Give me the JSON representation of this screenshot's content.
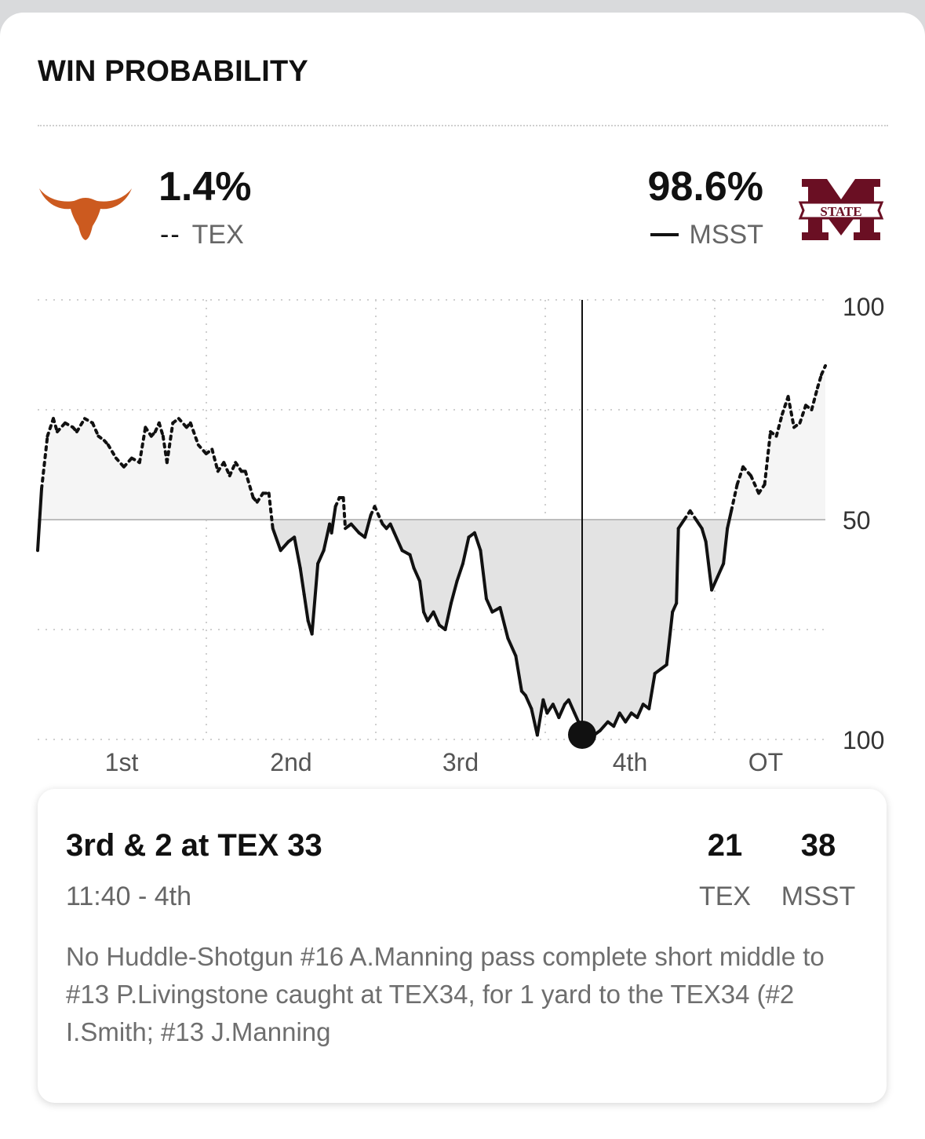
{
  "header": {
    "title": "WIN PROBABILITY"
  },
  "teams": {
    "away": {
      "pct": "1.4%",
      "key": "--",
      "abbr": "TEX",
      "logo": "longhorn-logo",
      "color": "#cc5a1f"
    },
    "home": {
      "pct": "98.6%",
      "abbr": "MSST",
      "logo": "msst-state-logo",
      "color": "#6a0f23",
      "logo_text": "STATE"
    }
  },
  "chart_data": {
    "type": "line",
    "y_tick_labels": [
      "100",
      "50",
      "100"
    ],
    "ylim": [
      0,
      100
    ],
    "x_period_labels": [
      "1st",
      "2nd",
      "3rd",
      "4th",
      "OT"
    ],
    "series": [
      {
        "name": "TEX",
        "style": "dotted"
      },
      {
        "name": "MSST",
        "style": "solid"
      }
    ],
    "current_marker_period": "4th",
    "msst_wp_points": [
      [
        0,
        57
      ],
      [
        0.1,
        43
      ],
      [
        0.25,
        31
      ],
      [
        0.4,
        27
      ],
      [
        0.5,
        30
      ],
      [
        0.7,
        28
      ],
      [
        0.9,
        29
      ],
      [
        1.0,
        30
      ],
      [
        1.2,
        27
      ],
      [
        1.4,
        28
      ],
      [
        1.55,
        31
      ],
      [
        1.7,
        32
      ],
      [
        1.8,
        33
      ],
      [
        2.0,
        36
      ],
      [
        2.2,
        38
      ],
      [
        2.4,
        36
      ],
      [
        2.6,
        37
      ],
      [
        2.75,
        29
      ],
      [
        2.9,
        31
      ],
      [
        3.0,
        30
      ],
      [
        3.1,
        28
      ],
      [
        3.2,
        31
      ],
      [
        3.3,
        37
      ],
      [
        3.45,
        28
      ],
      [
        3.6,
        27
      ],
      [
        3.8,
        29
      ],
      [
        3.9,
        28
      ],
      [
        4.1,
        33
      ],
      [
        4.3,
        35
      ],
      [
        4.45,
        34
      ],
      [
        4.6,
        39
      ],
      [
        4.75,
        37
      ],
      [
        4.9,
        40
      ],
      [
        5.05,
        37
      ],
      [
        5.2,
        39
      ],
      [
        5.3,
        39
      ],
      [
        5.5,
        45
      ],
      [
        5.6,
        46
      ],
      [
        5.75,
        44
      ],
      [
        5.9,
        44
      ],
      [
        6.0,
        52
      ],
      [
        6.2,
        57
      ],
      [
        6.4,
        55
      ],
      [
        6.55,
        54
      ],
      [
        6.7,
        61
      ],
      [
        6.8,
        67
      ],
      [
        6.9,
        73
      ],
      [
        7.0,
        76
      ],
      [
        7.15,
        60
      ],
      [
        7.3,
        57
      ],
      [
        7.45,
        51
      ],
      [
        7.5,
        53
      ],
      [
        7.6,
        47
      ],
      [
        7.7,
        45
      ],
      [
        7.8,
        45
      ],
      [
        7.85,
        52
      ],
      [
        8.0,
        51
      ],
      [
        8.2,
        53
      ],
      [
        8.35,
        54
      ],
      [
        8.5,
        49
      ],
      [
        8.6,
        47
      ],
      [
        8.8,
        51
      ],
      [
        8.9,
        52
      ],
      [
        9.0,
        51
      ],
      [
        9.1,
        53
      ],
      [
        9.3,
        57
      ],
      [
        9.5,
        58
      ],
      [
        9.6,
        61
      ],
      [
        9.75,
        64
      ],
      [
        9.85,
        71
      ],
      [
        9.95,
        73
      ],
      [
        10.1,
        71
      ],
      [
        10.25,
        74
      ],
      [
        10.4,
        75
      ],
      [
        10.55,
        69
      ],
      [
        10.7,
        64
      ],
      [
        10.85,
        60
      ],
      [
        11.0,
        54
      ],
      [
        11.15,
        53
      ],
      [
        11.3,
        57
      ],
      [
        11.45,
        68
      ],
      [
        11.6,
        71
      ],
      [
        11.8,
        70
      ],
      [
        12.0,
        77
      ],
      [
        12.2,
        81
      ],
      [
        12.35,
        89
      ],
      [
        12.45,
        90
      ],
      [
        12.6,
        93
      ],
      [
        12.75,
        99
      ],
      [
        12.9,
        91
      ],
      [
        13.0,
        94
      ],
      [
        13.15,
        92
      ],
      [
        13.3,
        95
      ],
      [
        13.45,
        92
      ],
      [
        13.55,
        91
      ],
      [
        13.7,
        94
      ],
      [
        13.8,
        96
      ],
      [
        13.9,
        100
      ],
      [
        14.0,
        99
      ],
      [
        14.1,
        99
      ],
      [
        14.2,
        99
      ],
      [
        14.35,
        98
      ],
      [
        14.45,
        97
      ],
      [
        14.55,
        96
      ],
      [
        14.7,
        97
      ],
      [
        14.85,
        94
      ],
      [
        15.0,
        96
      ],
      [
        15.15,
        94
      ],
      [
        15.3,
        95
      ],
      [
        15.45,
        92
      ],
      [
        15.6,
        93
      ],
      [
        15.75,
        85
      ],
      [
        15.9,
        84
      ],
      [
        16.05,
        83
      ],
      [
        16.2,
        71
      ],
      [
        16.3,
        69
      ],
      [
        16.35,
        52
      ],
      [
        16.5,
        50
      ],
      [
        16.65,
        48
      ],
      [
        16.8,
        50
      ],
      [
        16.95,
        52
      ],
      [
        17.05,
        55
      ],
      [
        17.2,
        66
      ],
      [
        17.35,
        63
      ],
      [
        17.5,
        60
      ],
      [
        17.6,
        52
      ],
      [
        17.7,
        48
      ],
      [
        17.85,
        42
      ],
      [
        18.0,
        38
      ],
      [
        18.2,
        40
      ],
      [
        18.4,
        44
      ],
      [
        18.55,
        42
      ],
      [
        18.7,
        30
      ],
      [
        18.85,
        31
      ],
      [
        19.0,
        26
      ],
      [
        19.15,
        22
      ],
      [
        19.3,
        29
      ],
      [
        19.45,
        28
      ],
      [
        19.6,
        24
      ],
      [
        19.75,
        25
      ],
      [
        19.9,
        20
      ],
      [
        20.0,
        17
      ],
      [
        20.1,
        15
      ]
    ]
  },
  "play": {
    "down_distance": "3rd & 2 at TEX 33",
    "clock": "11:40 - 4th",
    "tex_score": "21",
    "tex_abbr": "TEX",
    "msst_score": "38",
    "msst_abbr": "MSST",
    "description": "No Huddle-Shotgun #16 A.Manning pass complete short middle to #13 P.Livingstone caught at TEX34, for 1 yard to the TEX34 (#2 I.Smith; #13 J.Manning"
  }
}
